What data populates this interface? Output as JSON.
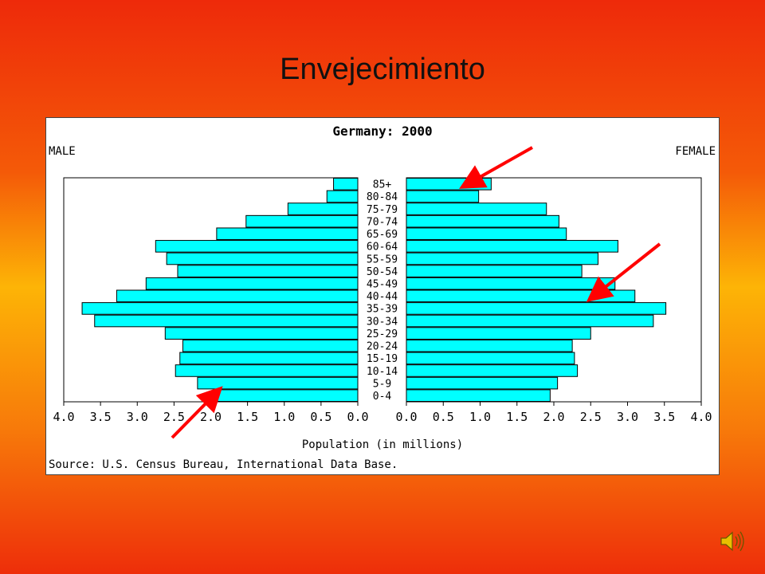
{
  "slide": {
    "title": "Envejecimiento"
  },
  "colors": {
    "bar_fill": "#00ffff",
    "bar_stroke": "#000000",
    "arrow": "#ff0000"
  },
  "icons": {
    "audio": "speaker-icon"
  },
  "chart_data": {
    "type": "bar",
    "orientation": "horizontal",
    "title": "Germany: 2000",
    "left_label": "MALE",
    "right_label": "FEMALE",
    "xlabel": "Population (in millions)",
    "source": "Source: U.S. Census Bureau, International Data Base.",
    "xlim": [
      0,
      4.0
    ],
    "x_ticks": [
      "4.0",
      "3.5",
      "3.0",
      "2.5",
      "2.0",
      "1.5",
      "1.0",
      "0.5",
      "0.0",
      "0.0",
      "0.5",
      "1.0",
      "1.5",
      "2.0",
      "2.5",
      "3.0",
      "3.5",
      "4.0"
    ],
    "categories": [
      "85+",
      "80-84",
      "75-79",
      "70-74",
      "65-69",
      "60-64",
      "55-59",
      "50-54",
      "45-49",
      "40-44",
      "35-39",
      "30-34",
      "25-29",
      "20-24",
      "15-19",
      "10-14",
      "5-9",
      "0-4"
    ],
    "series": [
      {
        "name": "MALE",
        "values": [
          0.33,
          0.42,
          0.95,
          1.52,
          1.92,
          2.75,
          2.6,
          2.45,
          2.88,
          3.28,
          3.75,
          3.58,
          2.62,
          2.38,
          2.42,
          2.48,
          2.18,
          1.95
        ]
      },
      {
        "name": "FEMALE",
        "values": [
          1.15,
          0.98,
          1.9,
          2.07,
          2.17,
          2.87,
          2.6,
          2.38,
          2.83,
          3.1,
          3.52,
          3.35,
          2.5,
          2.25,
          2.28,
          2.32,
          2.05,
          1.95
        ]
      }
    ],
    "grid": false,
    "legend": "none"
  }
}
